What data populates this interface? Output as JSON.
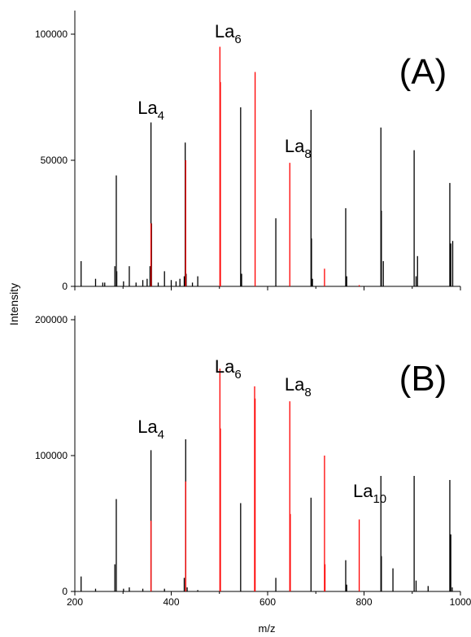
{
  "figure": {
    "ylabel": "Intensity",
    "xlabel": "m/z"
  },
  "chart_data": [
    {
      "type": "bar",
      "panel_label": "(A)",
      "xlabel": "",
      "ylabel": "Intensity",
      "xlim": [
        200,
        1000
      ],
      "ylim": [
        0,
        110000
      ],
      "x_ticks": [
        200,
        400,
        600,
        800,
        1000
      ],
      "y_ticks": [
        0,
        50000,
        100000
      ],
      "y_tick_labels": [
        "0",
        "50000",
        "100000"
      ],
      "series": [
        {
          "color": "#000000",
          "peaks": [
            [
              213,
              10000
            ],
            [
              243,
              3000
            ],
            [
              258,
              1500
            ],
            [
              262,
              1500
            ],
            [
              283,
              8000
            ],
            [
              286,
              44000
            ],
            [
              287,
              6000
            ],
            [
              301,
              2000
            ],
            [
              313,
              8000
            ],
            [
              327,
              1500
            ],
            [
              341,
              2500
            ],
            [
              350,
              3000
            ],
            [
              356,
              8000
            ],
            [
              358,
              65000
            ],
            [
              359,
              25000
            ],
            [
              373,
              1500
            ],
            [
              386,
              6000
            ],
            [
              400,
              2500
            ],
            [
              410,
              2000
            ],
            [
              418,
              3000
            ],
            [
              427,
              4000
            ],
            [
              429,
              57000
            ],
            [
              431,
              5000
            ],
            [
              444,
              1500
            ],
            [
              455,
              4000
            ],
            [
              544,
              71000
            ],
            [
              546,
              5000
            ],
            [
              617,
              27000
            ],
            [
              690,
              70000
            ],
            [
              691,
              19000
            ],
            [
              693,
              3000
            ],
            [
              762,
              31000
            ],
            [
              764,
              4000
            ],
            [
              835,
              63000
            ],
            [
              836,
              30000
            ],
            [
              840,
              10000
            ],
            [
              904,
              54000
            ],
            [
              908,
              4000
            ],
            [
              911,
              12000
            ],
            [
              978,
              41000
            ],
            [
              980,
              17000
            ],
            [
              984,
              18000
            ]
          ]
        },
        {
          "color": "#ff0000",
          "peaks": [
            [
              358,
              25000
            ],
            [
              430,
              50000
            ],
            [
              501,
              95000
            ],
            [
              502,
              81000
            ],
            [
              574,
              85000
            ],
            [
              646,
              49000
            ],
            [
              718,
              7000
            ],
            [
              790,
              500
            ]
          ]
        }
      ],
      "annotations": [
        {
          "text": "La",
          "sub": "4",
          "x": 358
        },
        {
          "text": "La",
          "sub": "6",
          "x": 501
        },
        {
          "text": "La",
          "sub": "8",
          "x": 646
        }
      ]
    },
    {
      "type": "bar",
      "panel_label": "(B)",
      "xlabel": "m/z",
      "ylabel": "Intensity",
      "xlim": [
        200,
        1000
      ],
      "ylim": [
        0,
        200000
      ],
      "x_ticks": [
        200,
        400,
        600,
        800,
        1000
      ],
      "x_tick_labels": [
        "200",
        "400",
        "600",
        "800",
        "1000"
      ],
      "y_ticks": [
        0,
        100000,
        200000
      ],
      "y_tick_labels": [
        "0",
        "100000",
        "200000"
      ],
      "series": [
        {
          "color": "#000000",
          "peaks": [
            [
              213,
              11000
            ],
            [
              243,
              2000
            ],
            [
              283,
              20000
            ],
            [
              286,
              68000
            ],
            [
              301,
              2000
            ],
            [
              313,
              3000
            ],
            [
              341,
              2000
            ],
            [
              358,
              104000
            ],
            [
              386,
              2000
            ],
            [
              427,
              10000
            ],
            [
              430,
              112000
            ],
            [
              433,
              3000
            ],
            [
              455,
              1000
            ],
            [
              544,
              65000
            ],
            [
              617,
              10000
            ],
            [
              690,
              69000
            ],
            [
              762,
              23000
            ],
            [
              764,
              5000
            ],
            [
              835,
              85000
            ],
            [
              836,
              26000
            ],
            [
              860,
              17000
            ],
            [
              904,
              85000
            ],
            [
              908,
              8000
            ],
            [
              933,
              4000
            ],
            [
              978,
              82000
            ],
            [
              980,
              42000
            ],
            [
              983,
              3000
            ]
          ]
        },
        {
          "color": "#ff0000",
          "peaks": [
            [
              358,
              52000
            ],
            [
              430,
              81000
            ],
            [
              501,
              164000
            ],
            [
              502,
              120000
            ],
            [
              573,
              151000
            ],
            [
              574,
              142000
            ],
            [
              646,
              140000
            ],
            [
              647,
              57000
            ],
            [
              718,
              100000
            ],
            [
              719,
              20000
            ],
            [
              790,
              53000
            ]
          ]
        }
      ],
      "annotations": [
        {
          "text": "La",
          "sub": "4",
          "x": 358
        },
        {
          "text": "La",
          "sub": "6",
          "x": 501
        },
        {
          "text": "La",
          "sub": "8",
          "x": 646
        },
        {
          "text": "La",
          "sub": "10",
          "x": 790
        }
      ]
    }
  ]
}
